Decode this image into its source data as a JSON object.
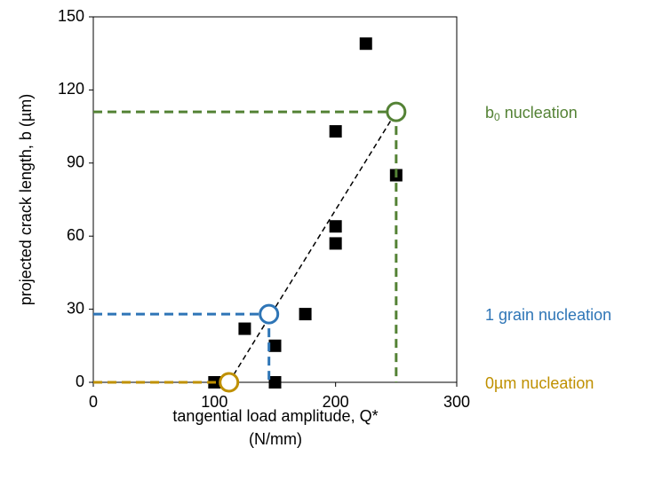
{
  "chart_data": {
    "type": "scatter",
    "xlabel": [
      "tangential load amplitude, Q*",
      "(N/mm)"
    ],
    "ylabel": "projected crack length, b (µm)",
    "xlim": [
      0,
      300
    ],
    "xticks": [
      0,
      100,
      200,
      300
    ],
    "ylim": [
      0,
      150
    ],
    "yticks": [
      0,
      30,
      60,
      90,
      120,
      150
    ],
    "series": [
      {
        "color": "#000000",
        "x": [
          100,
          125,
          150,
          150,
          175,
          200,
          200,
          200,
          225,
          250
        ],
        "values": [
          0,
          22,
          15,
          0,
          28,
          57,
          64,
          103,
          139,
          85
        ]
      }
    ],
    "thresholds": [
      {
        "label": "0µm nucleation",
        "color": "#bf9000",
        "x": 112,
        "y": 0
      },
      {
        "label": "1 grain nucleation",
        "color": "#2e75b6",
        "x": 145,
        "y": 28
      },
      {
        "label": "b",
        "subscript": "0",
        "suffix": " nucleation",
        "color": "#548235",
        "x": 250,
        "y": 111
      }
    ]
  }
}
